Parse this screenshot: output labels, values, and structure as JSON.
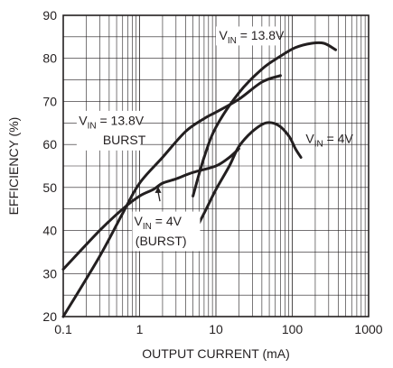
{
  "chart_data": {
    "type": "line",
    "xlabel": "OUTPUT CURRENT (mA)",
    "ylabel": "EFFICIENCY (%)",
    "xscale": "log",
    "xlim": [
      0.1,
      1000
    ],
    "ylim": [
      20,
      90
    ],
    "xticks": [
      "0.1",
      "1",
      "10",
      "100",
      "1000"
    ],
    "yticks": [
      "20",
      "30",
      "40",
      "50",
      "60",
      "70",
      "80",
      "90"
    ],
    "grid": true,
    "series": [
      {
        "name": "V_IN = 13.8V",
        "label_main": "V",
        "label_sub": "IN",
        "label_rest": " = 13.8V",
        "x": [
          5,
          7,
          10,
          20,
          40,
          70,
          110,
          180,
          260,
          370
        ],
        "y": [
          48,
          57,
          64,
          72,
          77.5,
          80.5,
          82.5,
          83.5,
          83.5,
          82
        ]
      },
      {
        "name": "V_IN = 4V",
        "label_main": "V",
        "label_sub": "IN",
        "label_rest": " = 4V",
        "x": [
          5,
          7,
          10,
          15,
          20,
          30,
          45,
          65,
          90,
          110,
          130
        ],
        "y": [
          39,
          44,
          49.5,
          55,
          59.5,
          63,
          65,
          64.5,
          62,
          59,
          57
        ]
      },
      {
        "name": "V_IN = 13.8V BURST",
        "label_main": "V",
        "label_sub": "IN",
        "label_rest": " = 13.8V",
        "label_line2": "BURST",
        "x": [
          0.1,
          0.3,
          0.6,
          1,
          2,
          4,
          7,
          10,
          20,
          40,
          70
        ],
        "y": [
          20,
          34,
          44,
          51,
          57,
          63,
          66,
          67.5,
          70.5,
          74.5,
          76
        ]
      },
      {
        "name": "V_IN = 4V (BURST)",
        "label_main": "V",
        "label_sub": "IN",
        "label_rest": " = 4V",
        "label_line2": "(BURST)",
        "x": [
          0.1,
          0.3,
          0.6,
          1,
          1.5,
          2,
          3,
          5,
          10,
          15,
          20
        ],
        "y": [
          31,
          40,
          45,
          48,
          49.5,
          51,
          52,
          53.5,
          55,
          57,
          59
        ]
      }
    ]
  }
}
